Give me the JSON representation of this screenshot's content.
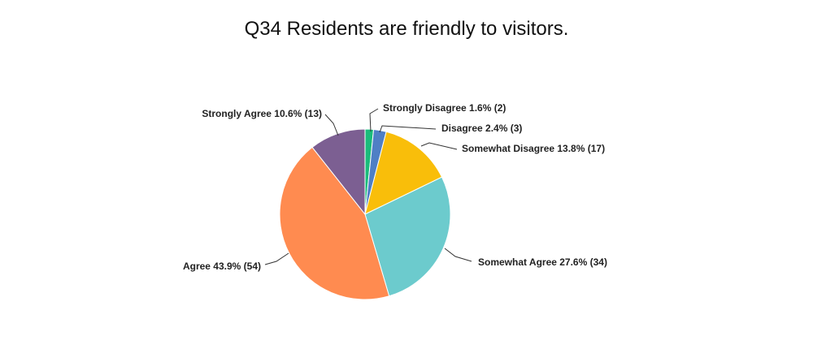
{
  "chart_data": {
    "type": "pie",
    "title": "Q34 Residents are friendly to visitors.",
    "slices": [
      {
        "label": "Strongly Disagree",
        "percent": 1.6,
        "count": 2,
        "display": "Strongly Disagree 1.6% (2)",
        "color": "#1abc7b"
      },
      {
        "label": "Disagree",
        "percent": 2.4,
        "count": 3,
        "display": "Disagree 2.4% (3)",
        "color": "#4f7fc5"
      },
      {
        "label": "Somewhat Disagree",
        "percent": 13.8,
        "count": 17,
        "display": "Somewhat Disagree 13.8% (17)",
        "color": "#f9be0a"
      },
      {
        "label": "Somewhat Agree",
        "percent": 27.6,
        "count": 34,
        "display": "Somewhat Agree 27.6% (34)",
        "color": "#6ccbcd"
      },
      {
        "label": "Agree",
        "percent": 43.9,
        "count": 54,
        "display": "Agree 43.9% (54)",
        "color": "#ff8b50"
      },
      {
        "label": "Strongly Agree",
        "percent": 10.6,
        "count": 13,
        "display": "Strongly Agree 10.6% (13)",
        "color": "#7c5f92"
      }
    ]
  }
}
